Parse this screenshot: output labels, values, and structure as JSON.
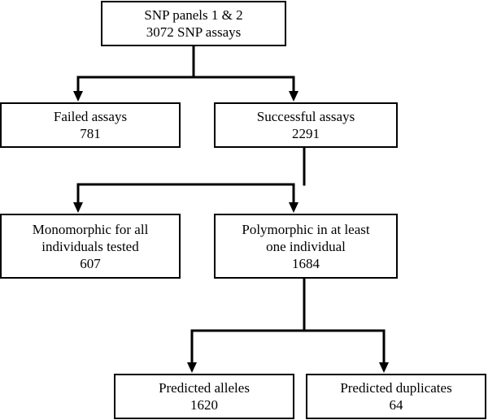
{
  "nodes": {
    "root": {
      "lines": [
        "SNP panels 1 & 2",
        "3072 SNP assays"
      ]
    },
    "failed": {
      "lines": [
        "Failed assays",
        "781"
      ]
    },
    "successful": {
      "lines": [
        "Successful assays",
        "2291"
      ]
    },
    "monomorphic": {
      "lines": [
        "Monomorphic for all",
        "individuals tested",
        "607"
      ]
    },
    "polymorphic": {
      "lines": [
        "Polymorphic in at least",
        "one individual",
        "1684"
      ]
    },
    "alleles": {
      "lines": [
        "Predicted alleles",
        "1620"
      ]
    },
    "duplicates": {
      "lines": [
        "Predicted duplicates",
        "64"
      ]
    }
  },
  "edges": [
    {
      "from": "root",
      "to": "failed"
    },
    {
      "from": "root",
      "to": "successful"
    },
    {
      "from": "successful",
      "to": "monomorphic"
    },
    {
      "from": "successful",
      "to": "polymorphic"
    },
    {
      "from": "polymorphic",
      "to": "alleles"
    },
    {
      "from": "polymorphic",
      "to": "duplicates"
    }
  ],
  "colors": {
    "line": "#000000",
    "box_fill": "#ffffff",
    "text": "#000000"
  }
}
